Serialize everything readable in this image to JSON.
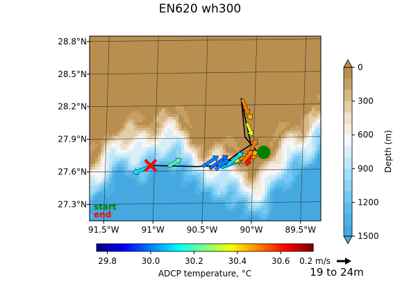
{
  "chart_data": {
    "type": "map",
    "title": "EN620 wh300",
    "time_range_label": "19 to 24m",
    "map": {
      "lon_range": [
        -91.7,
        -89.35
      ],
      "lat_range": [
        27.15,
        28.85
      ],
      "lon_ticks": [
        {
          "value": -91.5,
          "label": "91.5°W"
        },
        {
          "value": -91.0,
          "label": "91°W"
        },
        {
          "value": -90.5,
          "label": "90.5°W"
        },
        {
          "value": -90.0,
          "label": "90°W"
        },
        {
          "value": -89.5,
          "label": "89.5°W"
        }
      ],
      "lat_ticks": [
        {
          "value": 27.3,
          "label": "27.3°N"
        },
        {
          "value": 27.6,
          "label": "27.6°N"
        },
        {
          "value": 27.9,
          "label": "27.9°N"
        },
        {
          "value": 28.2,
          "label": "28.2°N"
        },
        {
          "value": 28.5,
          "label": "28.5°N"
        },
        {
          "value": 28.8,
          "label": "28.8°N"
        }
      ],
      "grid": true,
      "legend": {
        "start": "start",
        "end": "end",
        "placement": "bottom-left"
      },
      "start_color": "#008000",
      "end_color": "#ff0000",
      "start": {
        "lon": -89.93,
        "lat": 27.78
      },
      "end": {
        "lon": -91.08,
        "lat": 27.66
      }
    },
    "depth_colorbar": {
      "label": "Depth (m)",
      "ticks": [
        0,
        300,
        600,
        900,
        1200,
        1500
      ],
      "range": [
        0,
        1500
      ],
      "levels": [
        0,
        100,
        200,
        300,
        400,
        500,
        600,
        700,
        800,
        900,
        1000,
        1100,
        1200,
        1300,
        1400,
        1500
      ],
      "colors": [
        "#b98f4f",
        "#c7a066",
        "#d6b886",
        "#e4ceaa",
        "#f0e0cc",
        "#f7ede2",
        "#f4f8fb",
        "#d9eff8",
        "#bfe7f9",
        "#a6ddf8",
        "#8fd3f5",
        "#76c8f2",
        "#5fbdec",
        "#4fb2e6",
        "#45a8e0"
      ]
    },
    "temperature_colorbar": {
      "label": "ADCP temperature, °C",
      "ticks": [
        "29.8",
        "30.0",
        "30.2",
        "30.4",
        "30.6"
      ],
      "range": [
        29.75,
        30.75
      ]
    },
    "scale_arrow": {
      "label": "0.2 m/s"
    },
    "track": [
      {
        "lon": -91.08,
        "lat": 27.66
      },
      {
        "lon": -90.62,
        "lat": 27.65
      },
      {
        "lon": -90.35,
        "lat": 27.66
      },
      {
        "lon": -90.25,
        "lat": 27.7
      },
      {
        "lon": -90.1,
        "lat": 27.76
      },
      {
        "lon": -90.0,
        "lat": 27.79
      },
      {
        "lon": -90.12,
        "lat": 27.92
      },
      {
        "lon": -90.16,
        "lat": 28.28
      },
      {
        "lon": -90.12,
        "lat": 28.1
      },
      {
        "lon": -90.06,
        "lat": 27.85
      },
      {
        "lon": -90.18,
        "lat": 27.78
      },
      {
        "lon": -90.3,
        "lat": 27.7
      },
      {
        "lon": -90.15,
        "lat": 27.73
      },
      {
        "lon": -90.02,
        "lat": 27.77
      },
      {
        "lon": -89.93,
        "lat": 27.78
      }
    ],
    "vectors": [
      {
        "lon": -91.05,
        "lat": 27.66,
        "u": -0.16,
        "v": -0.06,
        "temp": 30.1
      },
      {
        "lon": -90.9,
        "lat": 27.65,
        "u": 0.1,
        "v": 0.06,
        "temp": 30.2
      },
      {
        "lon": -90.55,
        "lat": 27.65,
        "u": 0.12,
        "v": 0.08,
        "temp": 30.0
      },
      {
        "lon": -90.48,
        "lat": 27.63,
        "u": 0.14,
        "v": 0.1,
        "temp": 29.98
      },
      {
        "lon": -90.42,
        "lat": 27.62,
        "u": 0.1,
        "v": 0.08,
        "temp": 30.0
      },
      {
        "lon": -90.36,
        "lat": 27.64,
        "u": 0.16,
        "v": 0.06,
        "temp": 30.05
      },
      {
        "lon": -90.3,
        "lat": 27.66,
        "u": 0.12,
        "v": 0.1,
        "temp": 30.1
      },
      {
        "lon": -90.22,
        "lat": 27.69,
        "u": 0.1,
        "v": 0.06,
        "temp": 30.4
      },
      {
        "lon": -90.18,
        "lat": 27.72,
        "u": 0.14,
        "v": 0.02,
        "temp": 30.5
      },
      {
        "lon": -90.12,
        "lat": 27.74,
        "u": 0.1,
        "v": 0.04,
        "temp": 30.45
      },
      {
        "lon": -90.08,
        "lat": 27.76,
        "u": 0.06,
        "v": 0.12,
        "temp": 30.5
      },
      {
        "lon": -90.05,
        "lat": 27.8,
        "u": -0.04,
        "v": -0.12,
        "temp": 30.6
      },
      {
        "lon": -90.15,
        "lat": 27.68,
        "u": 0.08,
        "v": 0.1,
        "temp": 30.5
      },
      {
        "lon": -90.1,
        "lat": 28.05,
        "u": 0.04,
        "v": -0.1,
        "temp": 30.35
      },
      {
        "lon": -90.13,
        "lat": 28.2,
        "u": 0.06,
        "v": -0.1,
        "temp": 30.45
      },
      {
        "lon": -90.15,
        "lat": 28.27,
        "u": 0.05,
        "v": -0.12,
        "temp": 30.5
      }
    ]
  }
}
